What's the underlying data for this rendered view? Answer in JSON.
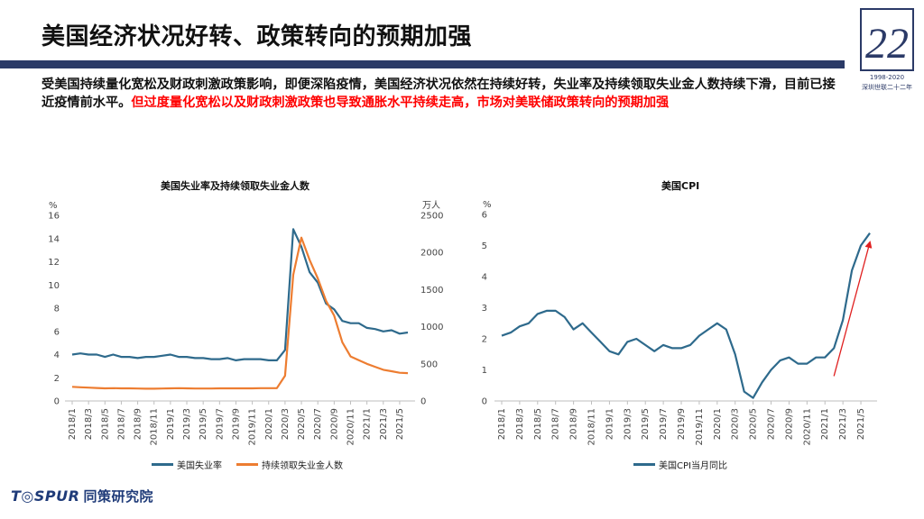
{
  "header": {
    "title": "美国经济状况好转、政策转向的预期加强",
    "logo_number": "22",
    "logo_years": "1998-2020",
    "logo_sub": "深圳世联二十二年"
  },
  "body": {
    "text_black": "受美国持续量化宽松及财政刺激政策影响，即便深陷疫情，美国经济状况依然在持续好转，失业率及持续领取失业金人数持续下滑，目前已接近疫情前水平。",
    "text_red": "但过度量化宽松以及财政刺激政策也导致通胀水平持续走高，市场对美联储政策转向的预期加强"
  },
  "footer": {
    "brand": "T◎SPUR",
    "brand_cn": "同策研究院"
  },
  "chart_data": [
    {
      "type": "line",
      "title": "美国失业率及持续领取失业金人数",
      "ylabel_left": "%",
      "ylabel_right": "万人",
      "ylim_left": [
        0,
        16
      ],
      "yticks_left": [
        0,
        2,
        4,
        6,
        8,
        10,
        12,
        14,
        16
      ],
      "ylim_right": [
        0,
        2500
      ],
      "yticks_right": [
        0,
        500,
        1000,
        1500,
        2000,
        2500
      ],
      "x_tick_labels": [
        "2018/1",
        "2018/3",
        "2018/5",
        "2018/7",
        "2018/9",
        "2018/11",
        "2019/1",
        "2019/3",
        "2019/5",
        "2019/7",
        "2019/9",
        "2019/11",
        "2020/1",
        "2020/3",
        "2020/5",
        "2020/7",
        "2020/9",
        "2020/11",
        "2021/1",
        "2021/3",
        "2021/5"
      ],
      "n_points": 42,
      "series": [
        {
          "name": "美国失业率",
          "axis": "left",
          "color": "#2e6a8c",
          "values": [
            4.0,
            4.1,
            4.0,
            4.0,
            3.8,
            4.0,
            3.8,
            3.8,
            3.7,
            3.8,
            3.8,
            3.9,
            4.0,
            3.8,
            3.8,
            3.7,
            3.7,
            3.6,
            3.6,
            3.7,
            3.5,
            3.6,
            3.6,
            3.6,
            3.5,
            3.5,
            4.4,
            14.8,
            13.3,
            11.1,
            10.2,
            8.4,
            7.9,
            6.9,
            6.7,
            6.7,
            6.3,
            6.2,
            6.0,
            6.1,
            5.8,
            5.9
          ]
        },
        {
          "name": "持续领取失业金人数",
          "axis": "right",
          "color": "#ed7d31",
          "values": [
            190,
            185,
            180,
            175,
            170,
            172,
            170,
            170,
            168,
            165,
            165,
            168,
            170,
            172,
            170,
            168,
            168,
            168,
            170,
            170,
            170,
            170,
            170,
            172,
            172,
            172,
            340,
            1700,
            2200,
            1900,
            1650,
            1350,
            1150,
            790,
            600,
            550,
            500,
            460,
            420,
            400,
            380,
            375
          ]
        }
      ]
    },
    {
      "type": "line",
      "title": "美国CPI",
      "ylabel": "%",
      "ylim": [
        0,
        6
      ],
      "yticks": [
        0,
        1,
        2,
        3,
        4,
        5,
        6
      ],
      "x_tick_labels": [
        "2018/1",
        "2018/3",
        "2018/5",
        "2018/7",
        "2018/9",
        "2018/11",
        "2019/1",
        "2019/3",
        "2019/5",
        "2019/7",
        "2019/9",
        "2019/11",
        "2020/1",
        "2020/3",
        "2020/5",
        "2020/7",
        "2020/9",
        "2020/11",
        "2021/1",
        "2021/3",
        "2021/5"
      ],
      "n_points": 42,
      "series": [
        {
          "name": "美国CPI当月同比",
          "color": "#2e6a8c",
          "values": [
            2.1,
            2.2,
            2.4,
            2.5,
            2.8,
            2.9,
            2.9,
            2.7,
            2.3,
            2.5,
            2.2,
            1.9,
            1.6,
            1.5,
            1.9,
            2.0,
            1.8,
            1.6,
            1.8,
            1.7,
            1.7,
            1.8,
            2.1,
            2.3,
            2.5,
            2.3,
            1.5,
            0.3,
            0.1,
            0.6,
            1.0,
            1.3,
            1.4,
            1.2,
            1.2,
            1.4,
            1.4,
            1.7,
            2.6,
            4.2,
            5.0,
            5.4
          ]
        }
      ],
      "annotation": {
        "type": "arrow",
        "color": "#e02020",
        "from_index": 37,
        "from_value": 0.8,
        "to_index": 41,
        "to_value": 5.1
      }
    }
  ]
}
